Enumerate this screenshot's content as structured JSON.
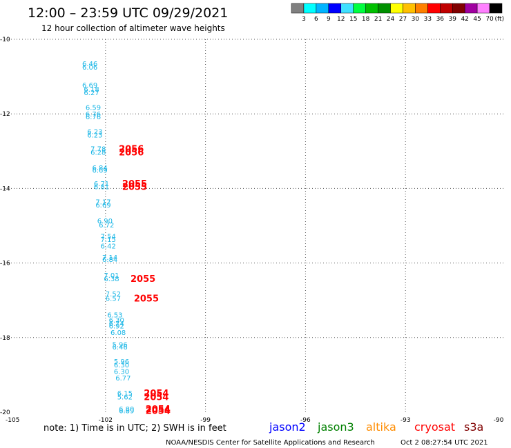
{
  "header": {
    "title": "12:00 – 23:59 UTC 09/29/2021",
    "subtitle": "12 hour collection of altimeter wave heights"
  },
  "colorbar": {
    "labels": [
      "3",
      "6",
      "9",
      "12",
      "15",
      "18",
      "21",
      "24",
      "27",
      "30",
      "33",
      "36",
      "39",
      "42",
      "45",
      "70"
    ],
    "unit": "(ft)",
    "colors": [
      "#808080",
      "#00ffff",
      "#00b4ff",
      "#0000ff",
      "#40e0ff",
      "#00ff40",
      "#00c000",
      "#009000",
      "#ffff00",
      "#ffc000",
      "#ff8000",
      "#ff0000",
      "#c00000",
      "#800000",
      "#a000a0",
      "#ff80ff",
      "#000000"
    ]
  },
  "footer": {
    "note": "note:  1) Time is in UTC;  2) SWH is in feet",
    "satellites": [
      {
        "name": "jason2",
        "color": "#0000ff"
      },
      {
        "name": "jason3",
        "color": "#008000"
      },
      {
        "name": "altika",
        "color": "#ff8c00"
      },
      {
        "name": "cryosat",
        "color": "#ff0000"
      },
      {
        "name": "s3a",
        "color": "#800000"
      }
    ],
    "credit": "NOAA/NESDIS Center for Satellite Applications and Research",
    "timestamp": "Oct  2 08:27:54 UTC 2021"
  },
  "chart_data": {
    "type": "scatter",
    "x_ticks": [
      -105,
      -102,
      -99,
      -96,
      -93,
      -90
    ],
    "x_tick_labels": [
      "-105",
      "-102",
      "-99",
      "-96",
      "-93",
      "-90"
    ],
    "y_ticks": [
      -10,
      -12,
      -14,
      -16,
      -18,
      -20
    ],
    "y_tick_labels": [
      "-10",
      "-12",
      "-14",
      "-16",
      "-18",
      "-20"
    ],
    "xlim": [
      -105,
      -90
    ],
    "ylim": [
      -20,
      -10
    ],
    "grid": true,
    "swh_points": [
      {
        "x": -102.7,
        "y": -10.65,
        "label": "6.46"
      },
      {
        "x": -102.7,
        "y": -10.74,
        "label": "6.06"
      },
      {
        "x": -102.7,
        "y": -11.22,
        "label": "6.69"
      },
      {
        "x": -102.65,
        "y": -11.33,
        "label": "6.18"
      },
      {
        "x": -102.65,
        "y": -11.42,
        "label": "6.27"
      },
      {
        "x": -102.6,
        "y": -11.82,
        "label": "6.59"
      },
      {
        "x": -102.6,
        "y": -12.0,
        "label": "6.76"
      },
      {
        "x": -102.6,
        "y": -12.07,
        "label": "6.76"
      },
      {
        "x": -102.55,
        "y": -12.47,
        "label": "6.23"
      },
      {
        "x": -102.55,
        "y": -12.56,
        "label": "6.23"
      },
      {
        "x": -102.45,
        "y": -12.93,
        "label": "7.78"
      },
      {
        "x": -102.45,
        "y": -13.02,
        "label": "6.28"
      },
      {
        "x": -102.4,
        "y": -13.44,
        "label": "6.84"
      },
      {
        "x": -102.4,
        "y": -13.5,
        "label": "6.69"
      },
      {
        "x": -102.35,
        "y": -13.86,
        "label": "6.71"
      },
      {
        "x": -102.35,
        "y": -13.95,
        "label": "6.81"
      },
      {
        "x": -102.3,
        "y": -14.35,
        "label": "7.17"
      },
      {
        "x": -102.3,
        "y": -14.44,
        "label": "6.69"
      },
      {
        "x": -102.25,
        "y": -14.86,
        "label": "6.90"
      },
      {
        "x": -102.2,
        "y": -14.97,
        "label": "6.72"
      },
      {
        "x": -102.15,
        "y": -15.28,
        "label": "7.54"
      },
      {
        "x": -102.15,
        "y": -15.36,
        "label": "7.15"
      },
      {
        "x": -102.15,
        "y": -15.54,
        "label": "6.42"
      },
      {
        "x": -102.1,
        "y": -15.84,
        "label": "7.14"
      },
      {
        "x": -102.1,
        "y": -15.9,
        "label": "6.84"
      },
      {
        "x": -102.05,
        "y": -16.32,
        "label": "7.01"
      },
      {
        "x": -102.05,
        "y": -16.41,
        "label": "6.38"
      },
      {
        "x": -102.0,
        "y": -16.82,
        "label": "7.52"
      },
      {
        "x": -102.0,
        "y": -16.94,
        "label": "6.57"
      },
      {
        "x": -101.95,
        "y": -17.38,
        "label": "6.53"
      },
      {
        "x": -101.9,
        "y": -17.52,
        "label": "6.30"
      },
      {
        "x": -101.9,
        "y": -17.62,
        "label": "6.74"
      },
      {
        "x": -101.9,
        "y": -17.68,
        "label": "6.92"
      },
      {
        "x": -101.85,
        "y": -17.86,
        "label": "6.08"
      },
      {
        "x": -101.8,
        "y": -18.18,
        "label": "5.96"
      },
      {
        "x": -101.8,
        "y": -18.24,
        "label": "6.46"
      },
      {
        "x": -101.75,
        "y": -18.63,
        "label": "5.96"
      },
      {
        "x": -101.75,
        "y": -18.72,
        "label": "6.30"
      },
      {
        "x": -101.75,
        "y": -18.9,
        "label": "6.30"
      },
      {
        "x": -101.7,
        "y": -19.08,
        "label": "6.77"
      },
      {
        "x": -101.65,
        "y": -19.48,
        "label": "6.15"
      },
      {
        "x": -101.65,
        "y": -19.58,
        "label": "5.62"
      },
      {
        "x": -101.6,
        "y": -19.91,
        "label": "6.80"
      },
      {
        "x": -101.6,
        "y": -19.95,
        "label": "6.89"
      }
    ],
    "pass_labels": [
      {
        "x": -101.6,
        "y": -12.93,
        "label": "2056"
      },
      {
        "x": -101.6,
        "y": -13.02,
        "label": "2056"
      },
      {
        "x": -101.5,
        "y": -13.86,
        "label": "2055"
      },
      {
        "x": -101.5,
        "y": -13.95,
        "label": "2055"
      },
      {
        "x": -101.25,
        "y": -16.41,
        "label": "2055"
      },
      {
        "x": -101.15,
        "y": -16.94,
        "label": "2055"
      },
      {
        "x": -100.85,
        "y": -19.48,
        "label": "2054"
      },
      {
        "x": -100.85,
        "y": -19.58,
        "label": "2054"
      },
      {
        "x": -100.8,
        "y": -19.91,
        "label": "2054"
      },
      {
        "x": -100.8,
        "y": -19.95,
        "label": "2054"
      }
    ]
  }
}
